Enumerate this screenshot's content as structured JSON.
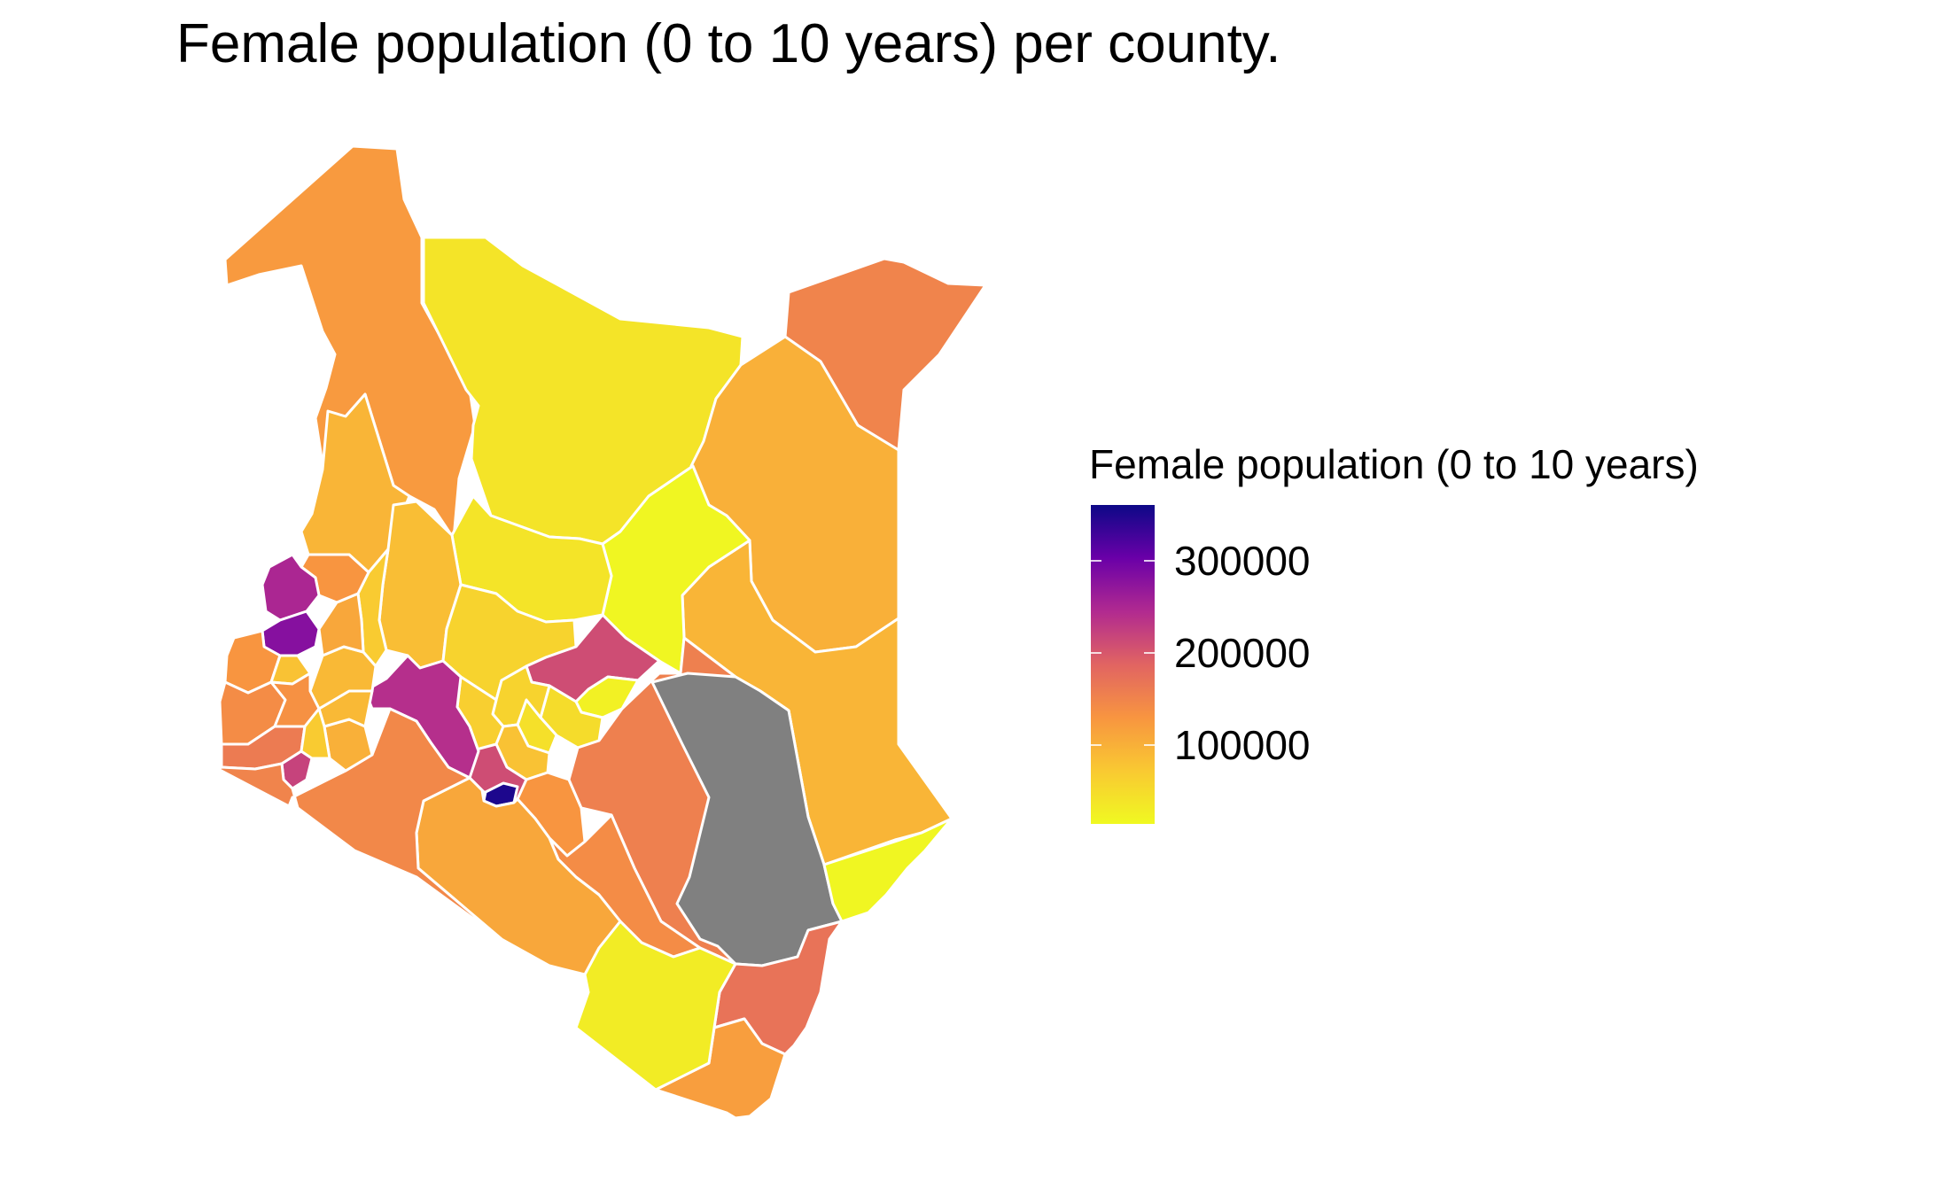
{
  "title": "Female population (0 to 10 years) per county.",
  "legend": {
    "title": "Female population (0 to 10 years)",
    "gradient": [
      "#F0F921",
      "#F9C932",
      "#F89540",
      "#E16462",
      "#B12A90",
      "#6A00A8",
      "#0D0887"
    ],
    "domain": [
      15000,
      360000
    ],
    "ticks": [
      {
        "label": "100000",
        "value": 100000
      },
      {
        "label": "200000",
        "value": 200000
      },
      {
        "label": "300000",
        "value": 300000
      }
    ],
    "na_color": "#808080"
  },
  "map": {
    "region": "Kenya",
    "unit": "county",
    "regions": [
      {
        "id": "turkana",
        "value": 125000
      },
      {
        "id": "marsabit",
        "value": 40000
      },
      {
        "id": "mandera",
        "value": 150000
      },
      {
        "id": "wajir",
        "value": 100000
      },
      {
        "id": "samburu",
        "value": 40000
      },
      {
        "id": "isiolo",
        "value": 18000
      },
      {
        "id": "garissa",
        "value": 95000
      },
      {
        "id": "tana-river",
        "value": null
      },
      {
        "id": "lamu",
        "value": 18000
      },
      {
        "id": "kilifi",
        "value": 170000
      },
      {
        "id": "kwale",
        "value": 120000
      },
      {
        "id": "taita-taveta",
        "value": 30000
      },
      {
        "id": "kitui",
        "value": 155000
      },
      {
        "id": "makueni",
        "value": 140000
      },
      {
        "id": "kajiado",
        "value": 110000
      },
      {
        "id": "narok",
        "value": 145000
      },
      {
        "id": "nakuru",
        "value": 240000
      },
      {
        "id": "nairobi",
        "value": 350000
      },
      {
        "id": "kiambu",
        "value": 210000
      },
      {
        "id": "meru",
        "value": 210000
      },
      {
        "id": "west-pokot",
        "value": 95000
      },
      {
        "id": "baringo",
        "value": 85000
      },
      {
        "id": "laikipia",
        "value": 60000
      },
      {
        "id": "tharaka-nithi",
        "value": 25000
      },
      {
        "id": "embu",
        "value": 50000
      },
      {
        "id": "kirinyaga",
        "value": 45000
      },
      {
        "id": "nyeri",
        "value": 60000
      },
      {
        "id": "nyandarua",
        "value": 65000
      },
      {
        "id": "murang-a",
        "value": 80000
      },
      {
        "id": "machakos",
        "value": 130000
      },
      {
        "id": "elgeyo-marakwet",
        "value": 70000
      },
      {
        "id": "trans-nzoia",
        "value": 130000
      },
      {
        "id": "uasin-gishu",
        "value": 110000
      },
      {
        "id": "nandi",
        "value": 90000
      },
      {
        "id": "kericho",
        "value": 90000
      },
      {
        "id": "bomet",
        "value": 100000
      },
      {
        "id": "bungoma",
        "value": 250000
      },
      {
        "id": "kakamega",
        "value": 280000
      },
      {
        "id": "busia",
        "value": 130000
      },
      {
        "id": "siaya",
        "value": 140000
      },
      {
        "id": "vihiga",
        "value": 80000
      },
      {
        "id": "kisumu",
        "value": 135000
      },
      {
        "id": "homa-bay",
        "value": 160000
      },
      {
        "id": "migori",
        "value": 150000
      },
      {
        "id": "kisii",
        "value": 220000
      },
      {
        "id": "nyamira",
        "value": 70000
      }
    ]
  }
}
